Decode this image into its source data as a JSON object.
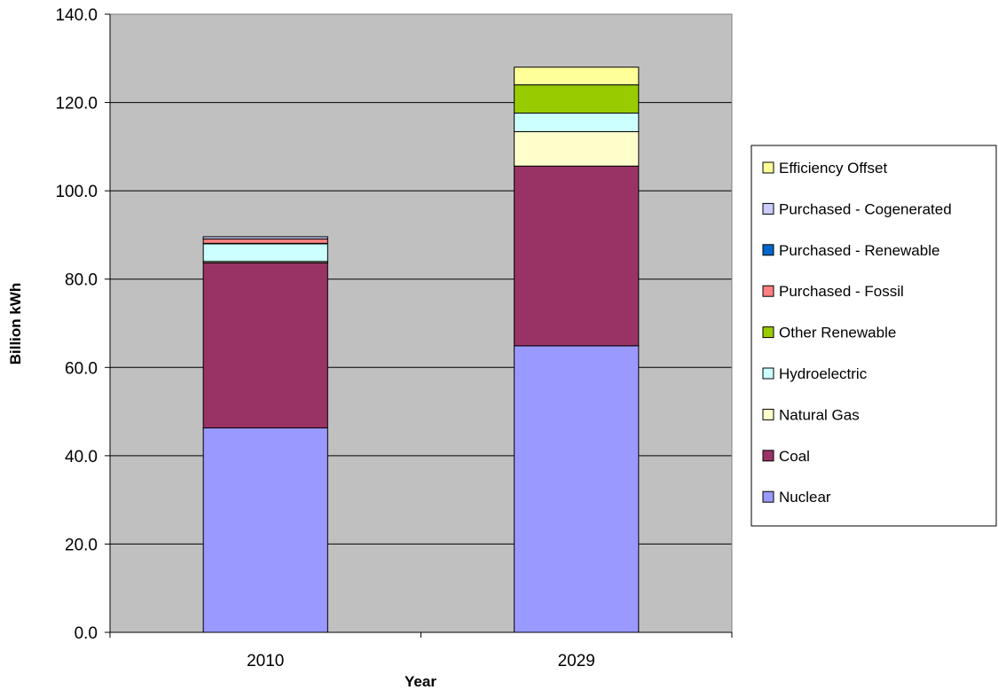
{
  "chart_data": {
    "type": "bar",
    "stacked": true,
    "title": "",
    "xlabel": "Year",
    "ylabel": "Billion kWh",
    "categories": [
      "2010",
      "2029"
    ],
    "ylim": [
      0,
      140
    ],
    "yticks": [
      "0.0",
      "20.0",
      "40.0",
      "60.0",
      "80.0",
      "100.0",
      "120.0",
      "140.0"
    ],
    "grid": true,
    "plot_background": "#c0c0c0",
    "legend_position": "right",
    "series": [
      {
        "name": "Nuclear",
        "color": "#9999ff",
        "values": [
          46.3,
          64.9
        ]
      },
      {
        "name": "Coal",
        "color": "#993366",
        "values": [
          37.4,
          40.7
        ]
      },
      {
        "name": "Natural Gas",
        "color": "#ffffcc",
        "values": [
          0.3,
          7.8
        ]
      },
      {
        "name": "Hydroelectric",
        "color": "#ccffff",
        "values": [
          4.0,
          4.2
        ]
      },
      {
        "name": "Other Renewable",
        "color": "#99cc00",
        "values": [
          0.1,
          6.4
        ]
      },
      {
        "name": "Purchased - Fossil",
        "color": "#ff8080",
        "values": [
          1.0,
          0.0
        ]
      },
      {
        "name": "Purchased - Renewable",
        "color": "#0066cc",
        "values": [
          0.0,
          0.0
        ]
      },
      {
        "name": "Purchased - Cogenerated",
        "color": "#ccccff",
        "values": [
          0.5,
          0.0
        ]
      },
      {
        "name": "Efficiency Offset",
        "color": "#ffff99",
        "values": [
          0.0,
          4.0
        ]
      }
    ]
  }
}
